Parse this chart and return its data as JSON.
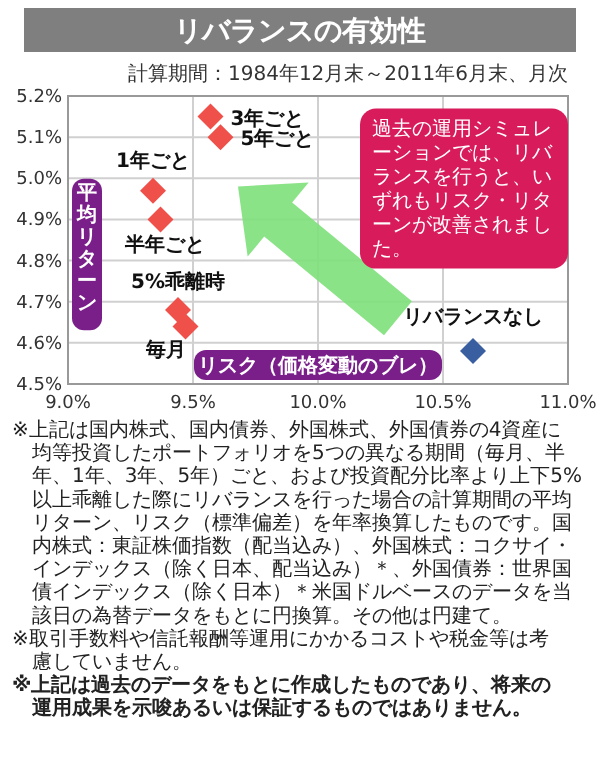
{
  "chart_data": {
    "type": "scatter",
    "title": "リバランスの有効性",
    "subtitle": "計算期間：1984年12月末～2011年6月末、月次",
    "xlabel": "リスク（価格変動のブレ）",
    "ylabel": "平均リターン",
    "series": [
      {
        "color": "#f0504a",
        "x": [
          9.57,
          9.61,
          9.34,
          9.37,
          9.44,
          9.47
        ],
        "values": [
          5.15,
          5.1,
          4.97,
          4.9,
          4.68,
          4.64
        ]
      },
      {
        "color": "#3a5fa0",
        "x": [
          10.62
        ],
        "values": [
          4.58
        ]
      }
    ],
    "xlim": [
      9,
      11
    ],
    "xticks": [
      {
        "value": 9,
        "label": "9.0%"
      },
      {
        "value": 9.5,
        "label": "9.5%"
      },
      {
        "value": 10,
        "label": "10.0%"
      },
      {
        "value": 10.5,
        "label": "10.5%"
      },
      {
        "value": 11,
        "label": "11.0%"
      }
    ],
    "ylim": [
      4.5,
      5.2
    ],
    "yticks": [
      {
        "value": 4.5,
        "label": "4.5%"
      },
      {
        "value": 4.6,
        "label": "4.6%"
      },
      {
        "value": 4.7,
        "label": "4.7%"
      },
      {
        "value": 4.8,
        "label": "4.8%"
      },
      {
        "value": 4.9,
        "label": "4.9%"
      },
      {
        "value": 5.0,
        "label": "5.0%"
      },
      {
        "value": 5.1,
        "label": "5.1%"
      },
      {
        "value": 5.2,
        "label": "5.2%"
      }
    ],
    "grid": true,
    "marker": "diamond",
    "annotations": [
      {
        "text": "3年ごと",
        "x": 9.57,
        "y": 5.15
      },
      {
        "text": "5年ごと",
        "x": 9.61,
        "y": 5.1
      },
      {
        "text": "1年ごと",
        "x": 9.34,
        "y": 4.97
      },
      {
        "text": "半年ごと",
        "x": 9.37,
        "y": 4.9
      },
      {
        "text": "5%乖離時",
        "x": 9.44,
        "y": 4.68
      },
      {
        "text": "毎月",
        "x": 9.47,
        "y": 4.64
      },
      {
        "text": "リバランスなし",
        "x": 10.62,
        "y": 4.58
      },
      "過去の運用シミュレーションでは、リバランスを行うと、いずれもリスク・リターンが改善されました。",
      "※上記は国内株式、国内債券、外国株式、外国債券の4資産に均等投資したポートフォリオを5つの異なる期間（毎月、半年、1年、3年、5年）ごと、および投資配分比率より上下5%以上乖離した際にリバランスを行った場合の計算期間の平均リターン、リスク（標準偏差）を年率換算したものです。国内株式：東証株価指数（配当込み）、外国株式：コクサイ・インデックス（除く日本、配当込み）＊、外国債券：世界国債インデックス（除く日本）＊米国ドルベースのデータを当該日の為替データをもとに円換算。その他は円建て。",
      "※取引手数料や信託報酬等運用にかかるコストや税金等は考慮していません。",
      "※上記は過去のデータをもとに作成したものであり、将来の運用成果を示唆あるいは保証するものではありません。"
    ]
  }
}
